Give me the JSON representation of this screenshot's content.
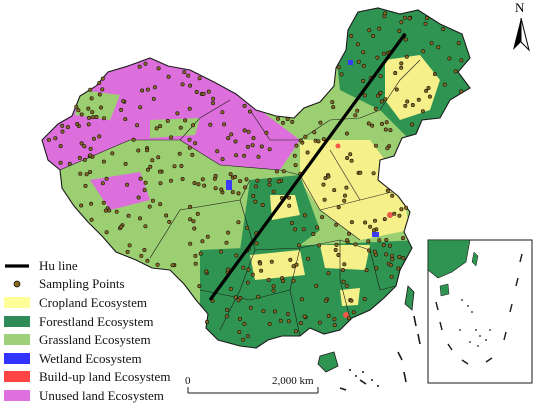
{
  "north_arrow": {
    "label": "N"
  },
  "scale_bar": {
    "start_label": "0",
    "end_label": "2,000 km"
  },
  "hu_line": {
    "label": "Hu line"
  },
  "legend": [
    {
      "key": "hu-line",
      "label": "Hu line",
      "symbol": "line",
      "color": "#000000"
    },
    {
      "key": "sampling-points",
      "label": "Sampling Points",
      "symbol": "dot",
      "color": "#8a6a1e"
    },
    {
      "key": "cropland",
      "label": "Cropland Ecosystem",
      "symbol": "fill",
      "color": "#ffff99"
    },
    {
      "key": "forestland",
      "label": "Forestland Ecosystem",
      "symbol": "fill",
      "color": "#2e8b57"
    },
    {
      "key": "grassland",
      "label": "Grassland Ecosystem",
      "symbol": "fill",
      "color": "#9fd17a"
    },
    {
      "key": "wetland",
      "label": "Wetland Ecosystem",
      "symbol": "fill",
      "color": "#3333ff"
    },
    {
      "key": "buildup",
      "label": "Build-up land Ecosystem",
      "symbol": "fill",
      "color": "#ff4444"
    },
    {
      "key": "unused",
      "label": "Unused land  Ecosystem",
      "symbol": "fill",
      "color": "#e070e0"
    }
  ],
  "colors": {
    "cropland": "#f6f08a",
    "forestland": "#2f9451",
    "grassland": "#9ccf72",
    "wetland": "#3b3bff",
    "buildup": "#f15a4a",
    "unused": "#dd6fdd",
    "boundary": "#1a1a1a",
    "sample": "#8a6a1e"
  }
}
